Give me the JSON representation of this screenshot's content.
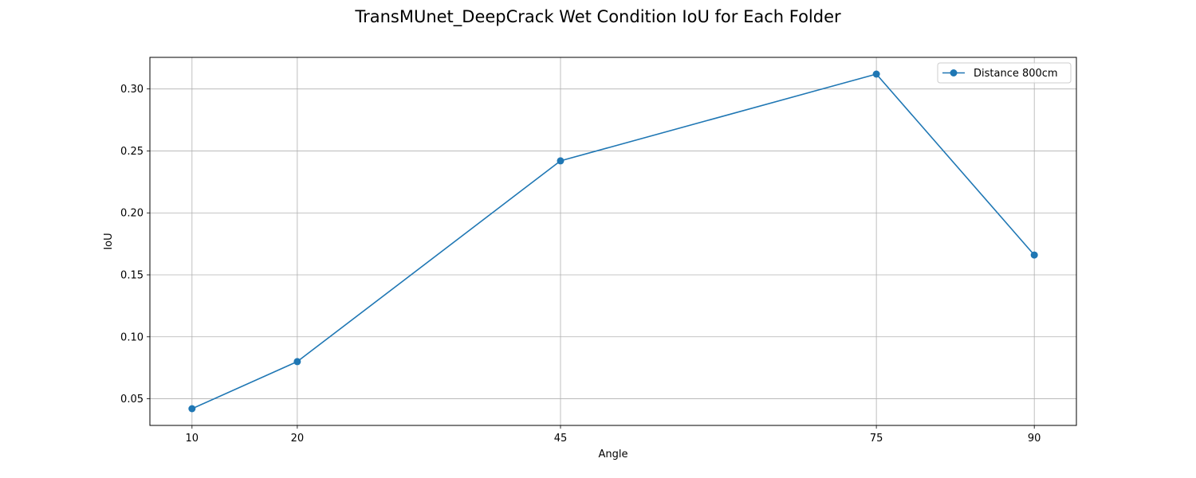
{
  "chart_data": {
    "type": "line",
    "title": "TransMUnet_DeepCrack Wet Condition IoU for Each Folder",
    "xlabel": "Angle",
    "ylabel": "IoU",
    "x": [
      10,
      20,
      45,
      75,
      90
    ],
    "x_tick_labels": [
      "10",
      "20",
      "45",
      "75",
      "90"
    ],
    "xlim": [
      6,
      94
    ],
    "ylim": [
      0.0285,
      0.3255
    ],
    "y_ticks": [
      0.05,
      0.1,
      0.15,
      0.2,
      0.25,
      0.3
    ],
    "y_tick_labels": [
      "0.05",
      "0.10",
      "0.15",
      "0.20",
      "0.25",
      "0.30"
    ],
    "series": [
      {
        "name": "Distance 800cm",
        "values": [
          0.042,
          0.08,
          0.242,
          0.312,
          0.166
        ],
        "color": "#1f77b4",
        "marker": "circle"
      }
    ],
    "grid": true,
    "legend_position": "top-right"
  }
}
